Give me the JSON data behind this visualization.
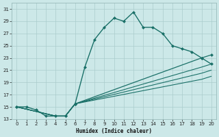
{
  "xlabel": "Humidex (Indice chaleur)",
  "bg_color": "#cce8e8",
  "grid_color": "#aacccc",
  "line_color": "#1a7068",
  "xlim": [
    -0.5,
    20.5
  ],
  "ylim": [
    13,
    32
  ],
  "xticks": [
    0,
    1,
    2,
    3,
    4,
    5,
    6,
    7,
    8,
    9,
    10,
    11,
    12,
    13,
    14,
    15,
    16,
    17,
    18,
    19,
    20
  ],
  "yticks": [
    13,
    15,
    17,
    19,
    21,
    23,
    25,
    27,
    29,
    31
  ],
  "series": [
    {
      "x": [
        0,
        1,
        2,
        3,
        4,
        5,
        6,
        7,
        8,
        9,
        10,
        11,
        12,
        13,
        14,
        15,
        16,
        17,
        18,
        19,
        20
      ],
      "y": [
        15,
        15,
        14.5,
        13.5,
        13.5,
        13.5,
        15.5,
        21.5,
        26.0,
        28.0,
        29.5,
        29.0,
        30.5,
        28.0,
        28.0,
        27.0,
        25.0,
        24.5,
        24.0,
        23.0,
        22.0
      ],
      "linestyle": "-",
      "marker": "D",
      "markersize": 2.0,
      "linewidth": 1.0
    },
    {
      "x": [
        0,
        4,
        5,
        6,
        19,
        20
      ],
      "y": [
        15,
        13.5,
        13.5,
        15.5,
        23.0,
        23.5
      ],
      "linestyle": "-",
      "marker": "D",
      "markersize": 2.0,
      "linewidth": 0.9
    },
    {
      "x": [
        0,
        4,
        5,
        6,
        19,
        20
      ],
      "y": [
        15,
        13.5,
        13.5,
        15.5,
        21.5,
        22.0
      ],
      "linestyle": "-",
      "marker": null,
      "markersize": 0,
      "linewidth": 0.8
    },
    {
      "x": [
        0,
        4,
        5,
        6,
        19,
        20
      ],
      "y": [
        15,
        13.5,
        13.5,
        15.5,
        20.5,
        21.0
      ],
      "linestyle": "-",
      "marker": null,
      "markersize": 0,
      "linewidth": 0.8
    },
    {
      "x": [
        0,
        4,
        5,
        6,
        19,
        20
      ],
      "y": [
        15,
        13.5,
        13.5,
        15.5,
        19.5,
        20.0
      ],
      "linestyle": "-",
      "marker": null,
      "markersize": 0,
      "linewidth": 0.8
    }
  ]
}
